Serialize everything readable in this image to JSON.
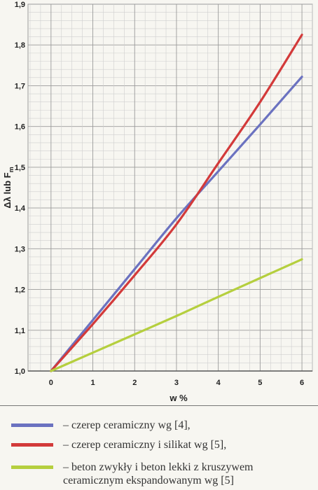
{
  "chart_data": {
    "type": "line",
    "xlabel": "w %",
    "ylabel_main": "Δλ lub F",
    "ylabel_sub": "m",
    "xlim": [
      -0.55,
      6.25
    ],
    "ylim": [
      1.0,
      1.9
    ],
    "xticks": [
      "0",
      "1",
      "2",
      "3",
      "4",
      "5",
      "6"
    ],
    "yticks": [
      "1,0",
      "1,1",
      "1,2",
      "1,3",
      "1,4",
      "1,5",
      "1,6",
      "1,7",
      "1,8",
      "1,9"
    ],
    "grid": true,
    "series": [
      {
        "name": "– czerep ceramiczny wg [4],",
        "color": "#6b72c0",
        "x": [
          0,
          1,
          2,
          3,
          4,
          5,
          6
        ],
        "y": [
          1.0,
          1.125,
          1.25,
          1.375,
          1.49,
          1.605,
          1.722
        ]
      },
      {
        "name": "– czerep ceramiczny i silikat wg [5],",
        "color": "#d33a3a",
        "x": [
          0,
          1,
          2,
          3,
          4,
          5,
          6
        ],
        "y": [
          1.0,
          1.115,
          1.235,
          1.36,
          1.51,
          1.66,
          1.825
        ]
      },
      {
        "name": "– beton zwykły i beton lekki z kruszywem ceramicznym ekspandowanym wg [5]",
        "color": "#b5cf3e",
        "x": [
          0,
          1,
          2,
          3,
          4,
          5,
          6
        ],
        "y": [
          1.0,
          1.045,
          1.09,
          1.135,
          1.182,
          1.228,
          1.274
        ]
      }
    ]
  }
}
